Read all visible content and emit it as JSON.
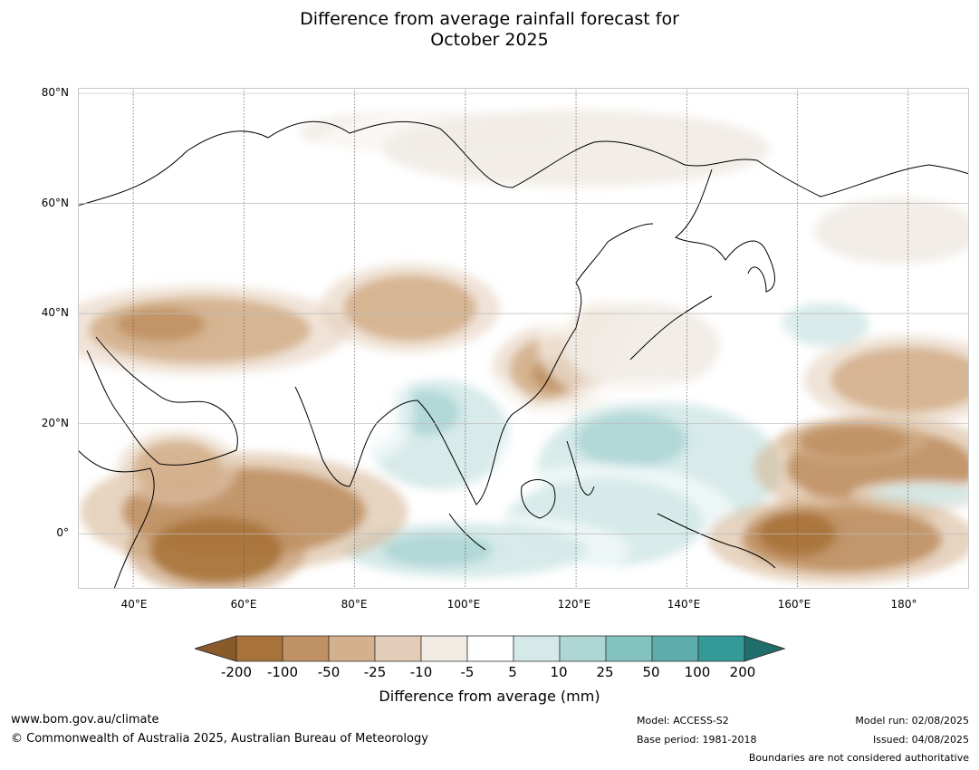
{
  "title": {
    "line1": "Difference from average rainfall forecast for",
    "line2": "October 2025"
  },
  "map": {
    "lat_labels": [
      "80°N",
      "60°N",
      "40°N",
      "20°N",
      "0°"
    ],
    "lon_labels": [
      "40°E",
      "60°E",
      "80°E",
      "100°E",
      "120°E",
      "140°E",
      "160°E",
      "180°"
    ],
    "extent": {
      "lon_min": 30,
      "lon_max": 191,
      "lat_min": -10,
      "lat_max": 81
    },
    "graticule_lons": [
      40,
      60,
      80,
      100,
      120,
      140,
      160,
      180
    ],
    "graticule_lats": [
      80,
      60,
      40,
      20,
      0
    ],
    "regions": [
      {
        "name": "arctic-ocean-wet",
        "lon": 95,
        "lat": 73,
        "rx": 25,
        "ry": 4,
        "level": 5
      },
      {
        "name": "scandinavia-wet",
        "lon": 52,
        "lat": 64,
        "rx": 22,
        "ry": 4,
        "level": 6
      },
      {
        "name": "north-russia-wet",
        "lon": 120,
        "lat": 70,
        "rx": 35,
        "ry": 7,
        "level": 5
      },
      {
        "name": "north-pacific-wet",
        "lon": 170,
        "lat": 45,
        "rx": 22,
        "ry": 12,
        "level": 6
      },
      {
        "name": "north-pacific-wet-core",
        "lon": 165,
        "lat": 38,
        "rx": 8,
        "ry": 4,
        "level": 7
      },
      {
        "name": "north-pacific-edge",
        "lon": 178,
        "lat": 55,
        "rx": 15,
        "ry": 6,
        "level": 5
      },
      {
        "name": "north-pacific-dry",
        "lon": 180,
        "lat": 28,
        "rx": 14,
        "ry": 6,
        "level": 3
      },
      {
        "name": "middle-east-dry",
        "lon": 52,
        "lat": 37,
        "rx": 20,
        "ry": 6,
        "level": 3
      },
      {
        "name": "middle-east-dry-core",
        "lon": 45,
        "lat": 38,
        "rx": 8,
        "ry": 3,
        "level": 2
      },
      {
        "name": "central-asia-dry",
        "lon": 90,
        "lat": 41,
        "rx": 12,
        "ry": 6,
        "level": 3
      },
      {
        "name": "east-china-dry",
        "lon": 117,
        "lat": 30,
        "rx": 9,
        "ry": 6,
        "level": 3
      },
      {
        "name": "east-china-dry-core",
        "lon": 117,
        "lat": 29,
        "rx": 5,
        "ry": 3,
        "level": 2
      },
      {
        "name": "korea-dry",
        "lon": 125,
        "lat": 37,
        "rx": 5,
        "ry": 4,
        "level": 3
      },
      {
        "name": "japan-wet",
        "lon": 142,
        "lat": 32,
        "rx": 14,
        "ry": 8,
        "level": 6
      },
      {
        "name": "east-asia-coast-wet",
        "lon": 132,
        "lat": 34,
        "rx": 14,
        "ry": 8,
        "level": 5
      },
      {
        "name": "bay-of-bengal-wet",
        "lon": 95,
        "lat": 18,
        "rx": 13,
        "ry": 10,
        "level": 7
      },
      {
        "name": "bay-of-bengal-core",
        "lon": 93,
        "lat": 22,
        "rx": 6,
        "ry": 4,
        "level": 8
      },
      {
        "name": "india-wet",
        "lon": 80,
        "lat": 22,
        "rx": 8,
        "ry": 7,
        "level": 6
      },
      {
        "name": "west-pacific-wet",
        "lon": 135,
        "lat": 12,
        "rx": 22,
        "ry": 12,
        "level": 7
      },
      {
        "name": "west-pacific-wet-core",
        "lon": 130,
        "lat": 17,
        "rx": 10,
        "ry": 5,
        "level": 8
      },
      {
        "name": "maritime-continent-wet",
        "lon": 125,
        "lat": 2,
        "rx": 18,
        "ry": 8,
        "level": 7
      },
      {
        "name": "indian-ocean-wet",
        "lon": 100,
        "lat": -3,
        "rx": 22,
        "ry": 5,
        "level": 7
      },
      {
        "name": "indian-ocean-wet-core",
        "lon": 95,
        "lat": -3,
        "rx": 10,
        "ry": 3,
        "level": 8
      },
      {
        "name": "arabian-sea-dry",
        "lon": 60,
        "lat": 4,
        "rx": 22,
        "ry": 8,
        "level": 2
      },
      {
        "name": "east-africa-dry",
        "lon": 55,
        "lat": -3,
        "rx": 12,
        "ry": 6,
        "level": 1
      },
      {
        "name": "horn-africa-dry",
        "lon": 48,
        "lat": 12,
        "rx": 8,
        "ry": 5,
        "level": 3
      },
      {
        "name": "central-pacific-dry",
        "lon": 175,
        "lat": 12,
        "rx": 17,
        "ry": 7,
        "level": 2
      },
      {
        "name": "central-pacific-dry-core",
        "lon": 170,
        "lat": 17,
        "rx": 10,
        "ry": 3,
        "level": 2
      },
      {
        "name": "central-pacific-wet-band",
        "lon": 183,
        "lat": 7,
        "rx": 10,
        "ry": 2,
        "level": 7
      },
      {
        "name": "south-pacific-dry",
        "lon": 168,
        "lat": -1,
        "rx": 18,
        "ry": 6,
        "level": 2
      },
      {
        "name": "south-pacific-dry-core",
        "lon": 160,
        "lat": 0,
        "rx": 7,
        "ry": 4,
        "level": 1
      }
    ]
  },
  "colorbar": {
    "colors": [
      "#8b5a2b",
      "#a8733a",
      "#c09164",
      "#d4b08c",
      "#e3cdb8",
      "#f1ebe4",
      "#ffffff",
      "#d4e9e8",
      "#aed6d5",
      "#85c3c3",
      "#5eacac",
      "#339a98",
      "#1f6e6b"
    ],
    "tick_labels": [
      "-200",
      "-100",
      "-50",
      "-25",
      "-10",
      "-5",
      "5",
      "10",
      "25",
      "50",
      "100",
      "200"
    ],
    "label": "Difference from average (mm)"
  },
  "footer": {
    "website": "www.bom.gov.au/climate",
    "copyright": "© Commonwealth of Australia 2025, Australian Bureau of Meteorology",
    "model": "Model: ACCESS-S2",
    "base_period": "Base period: 1981-2018",
    "model_run": "Model run: 02/08/2025",
    "issued": "Issued: 04/08/2025",
    "disclaimer": "Boundaries are not considered authoritative"
  }
}
